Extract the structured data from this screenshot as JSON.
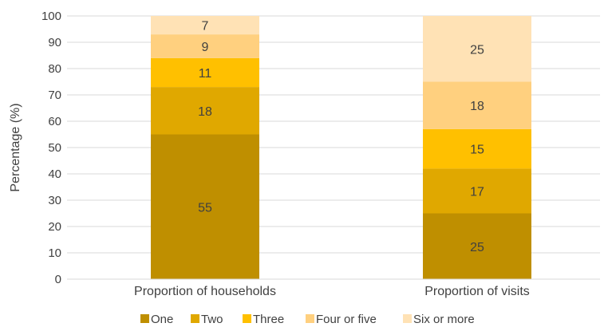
{
  "chart_data": {
    "type": "bar",
    "stacked": true,
    "ylabel": "Percentage (%)",
    "ylim": [
      0,
      100
    ],
    "yticks": [
      0,
      10,
      20,
      30,
      40,
      50,
      60,
      70,
      80,
      90,
      100
    ],
    "grid": true,
    "legend": "bottom",
    "categories": [
      "Proportion of households",
      "Proportion of visits"
    ],
    "series": [
      {
        "name": "One",
        "values": [
          55,
          25
        ],
        "color": "#bf8f00"
      },
      {
        "name": "Two",
        "values": [
          18,
          17
        ],
        "color": "#e0a800"
      },
      {
        "name": "Three",
        "values": [
          11,
          15
        ],
        "color": "#ffc000"
      },
      {
        "name": "Four or five",
        "values": [
          9,
          18
        ],
        "color": "#ffd07f"
      },
      {
        "name": "Six or more",
        "values": [
          7,
          25
        ],
        "color": "#ffe2b5"
      }
    ]
  }
}
